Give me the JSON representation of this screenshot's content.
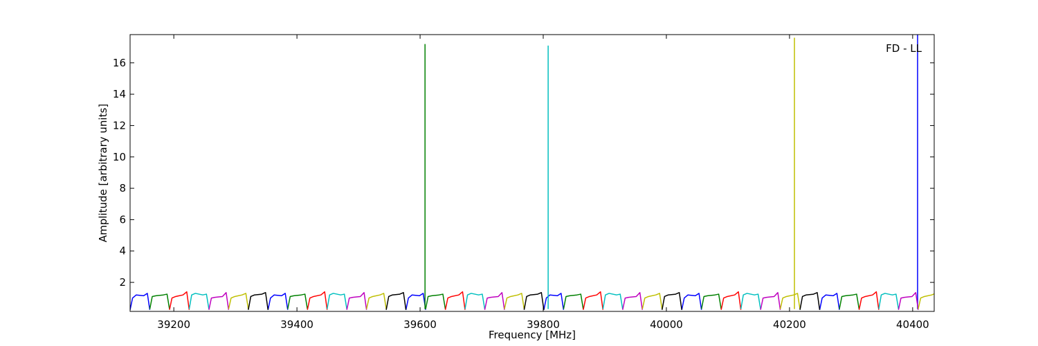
{
  "chart_data": {
    "type": "line",
    "xlabel": "Frequency [MHz]",
    "ylabel": "Amplitude [arbitrary units]",
    "annotation": "FD - LL",
    "xlim": [
      39129,
      40435
    ],
    "ylim": [
      0.15,
      17.8
    ],
    "xticks": [
      39200,
      39400,
      39600,
      39800,
      40000,
      40200,
      40400
    ],
    "yticks": [
      2,
      4,
      6,
      8,
      10,
      12,
      14,
      16
    ],
    "series": [
      {
        "color": "#0000ff",
        "x": [
          39129,
          39133,
          39139,
          39151,
          39157,
          39161,
          null,
          39353,
          39357,
          39363,
          39375,
          39381,
          39385,
          null,
          39577,
          39581,
          39587,
          39599,
          39605,
          39609,
          null,
          39801,
          39805,
          39811,
          39823,
          39829,
          39833,
          null,
          40025,
          40029,
          40035,
          40047,
          40053,
          40057,
          null,
          40249,
          40253,
          40259,
          40271,
          40277,
          40281,
          null,
          40408,
          40408
        ],
        "values": [
          0.25,
          1.0,
          1.2,
          1.15,
          1.3,
          0.25,
          null,
          0.25,
          1.0,
          1.2,
          1.15,
          1.3,
          0.25,
          null,
          0.25,
          1.0,
          1.2,
          1.15,
          1.3,
          0.25,
          null,
          0.25,
          1.0,
          1.2,
          1.15,
          1.3,
          0.25,
          null,
          0.25,
          1.0,
          1.2,
          1.15,
          1.3,
          0.25,
          null,
          0.25,
          1.0,
          1.2,
          1.15,
          1.3,
          0.25,
          null,
          0.3,
          17.8
        ]
      },
      {
        "color": "#008000",
        "x": [
          39161,
          39165,
          39171,
          39183,
          39189,
          39193,
          null,
          39385,
          39389,
          39395,
          39407,
          39413,
          39417,
          null,
          39609,
          39613,
          39619,
          39631,
          39637,
          39641,
          null,
          39833,
          39837,
          39843,
          39855,
          39861,
          39865,
          null,
          40057,
          40061,
          40067,
          40079,
          40085,
          40089,
          null,
          40281,
          40285,
          40291,
          40303,
          40309,
          40313,
          null,
          39608,
          39608
        ],
        "values": [
          0.3,
          1.1,
          1.15,
          1.2,
          1.25,
          0.3,
          null,
          0.3,
          1.1,
          1.15,
          1.2,
          1.25,
          0.3,
          null,
          0.3,
          1.1,
          1.15,
          1.2,
          1.25,
          0.3,
          null,
          0.3,
          1.1,
          1.15,
          1.2,
          1.25,
          0.3,
          null,
          0.3,
          1.1,
          1.15,
          1.2,
          1.25,
          0.3,
          null,
          0.3,
          1.1,
          1.15,
          1.2,
          1.25,
          0.3,
          null,
          0.3,
          17.2
        ]
      },
      {
        "color": "#ff0000",
        "x": [
          39193,
          39197,
          39203,
          39215,
          39221,
          39225,
          null,
          39417,
          39421,
          39427,
          39439,
          39445,
          39449,
          null,
          39641,
          39645,
          39651,
          39663,
          39669,
          39673,
          null,
          39865,
          39869,
          39875,
          39887,
          39893,
          39897,
          null,
          40089,
          40093,
          40099,
          40111,
          40117,
          40121,
          null,
          40313,
          40317,
          40323,
          40335,
          40341,
          40345
        ],
        "values": [
          0.25,
          1.0,
          1.1,
          1.2,
          1.4,
          0.25,
          null,
          0.25,
          1.0,
          1.1,
          1.2,
          1.4,
          0.25,
          null,
          0.25,
          1.0,
          1.1,
          1.2,
          1.4,
          0.25,
          null,
          0.25,
          1.0,
          1.1,
          1.2,
          1.4,
          0.25,
          null,
          0.25,
          1.0,
          1.1,
          1.2,
          1.4,
          0.25,
          null,
          0.25,
          1.0,
          1.1,
          1.2,
          1.4,
          0.25
        ]
      },
      {
        "color": "#00bfbf",
        "x": [
          39225,
          39229,
          39235,
          39247,
          39253,
          39257,
          null,
          39449,
          39453,
          39459,
          39471,
          39477,
          39481,
          null,
          39673,
          39677,
          39683,
          39695,
          39701,
          39705,
          null,
          39897,
          39901,
          39907,
          39919,
          39925,
          39929,
          null,
          40121,
          40125,
          40131,
          40143,
          40149,
          40153,
          null,
          40345,
          40349,
          40355,
          40367,
          40373,
          40377,
          null,
          39808,
          39808
        ],
        "values": [
          0.3,
          1.2,
          1.3,
          1.2,
          1.25,
          0.3,
          null,
          0.3,
          1.2,
          1.3,
          1.2,
          1.25,
          0.3,
          null,
          0.3,
          1.2,
          1.3,
          1.2,
          1.25,
          0.3,
          null,
          0.3,
          1.2,
          1.3,
          1.2,
          1.25,
          0.3,
          null,
          0.3,
          1.2,
          1.3,
          1.2,
          1.25,
          0.3,
          null,
          0.3,
          1.2,
          1.3,
          1.2,
          1.25,
          0.3,
          null,
          0.3,
          17.1
        ]
      },
      {
        "color": "#bf00bf",
        "x": [
          39257,
          39261,
          39267,
          39279,
          39285,
          39289,
          null,
          39481,
          39485,
          39491,
          39503,
          39509,
          39513,
          null,
          39705,
          39709,
          39715,
          39727,
          39733,
          39737,
          null,
          39929,
          39933,
          39939,
          39951,
          39957,
          39961,
          null,
          40153,
          40157,
          40163,
          40175,
          40181,
          40185,
          null,
          40377,
          40381,
          40387,
          40399,
          40405,
          40409
        ],
        "values": [
          0.25,
          1.0,
          1.05,
          1.1,
          1.35,
          0.25,
          null,
          0.25,
          1.0,
          1.05,
          1.1,
          1.35,
          0.25,
          null,
          0.25,
          1.0,
          1.05,
          1.1,
          1.35,
          0.25,
          null,
          0.25,
          1.0,
          1.05,
          1.1,
          1.35,
          0.25,
          null,
          0.25,
          1.0,
          1.05,
          1.1,
          1.35,
          0.25,
          null,
          0.25,
          1.0,
          1.05,
          1.1,
          1.35,
          0.25
        ]
      },
      {
        "color": "#bfbf00",
        "x": [
          39289,
          39293,
          39299,
          39311,
          39317,
          39321,
          null,
          39513,
          39517,
          39523,
          39535,
          39541,
          39545,
          null,
          39737,
          39741,
          39747,
          39759,
          39765,
          39769,
          null,
          39961,
          39965,
          39971,
          39983,
          39989,
          39993,
          null,
          40185,
          40189,
          40195,
          40207,
          40213,
          40217,
          null,
          40409,
          40413,
          40419,
          40431,
          40437,
          40441,
          null,
          40208,
          40208
        ],
        "values": [
          0.3,
          1.0,
          1.1,
          1.2,
          1.3,
          0.3,
          null,
          0.3,
          1.0,
          1.1,
          1.2,
          1.3,
          0.3,
          null,
          0.3,
          1.0,
          1.1,
          1.2,
          1.3,
          0.3,
          null,
          0.3,
          1.0,
          1.1,
          1.2,
          1.3,
          0.3,
          null,
          0.3,
          1.0,
          1.1,
          1.2,
          1.3,
          0.3,
          null,
          0.3,
          1.0,
          1.1,
          1.2,
          1.3,
          0.3,
          null,
          0.3,
          17.6
        ]
      },
      {
        "color": "#000000",
        "x": [
          39321,
          39325,
          39331,
          39343,
          39349,
          39353,
          null,
          39545,
          39549,
          39555,
          39567,
          39573,
          39577,
          null,
          39769,
          39773,
          39779,
          39791,
          39797,
          39801,
          null,
          39993,
          39997,
          40003,
          40015,
          40021,
          40025,
          null,
          40217,
          40221,
          40227,
          40239,
          40245,
          40249
        ],
        "values": [
          0.25,
          1.1,
          1.2,
          1.25,
          1.35,
          0.25,
          null,
          0.25,
          1.1,
          1.2,
          1.25,
          1.35,
          0.25,
          null,
          0.25,
          1.1,
          1.2,
          1.25,
          1.35,
          0.25,
          null,
          0.25,
          1.1,
          1.2,
          1.25,
          1.35,
          0.25,
          null,
          0.25,
          1.1,
          1.2,
          1.25,
          1.35,
          0.25
        ]
      }
    ]
  }
}
